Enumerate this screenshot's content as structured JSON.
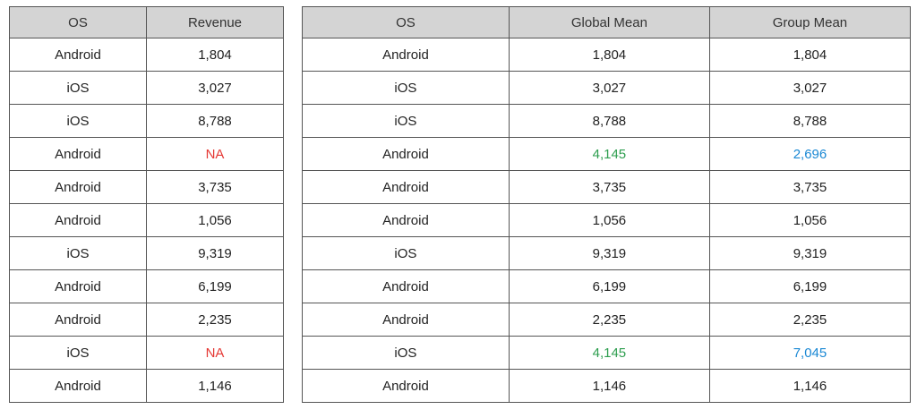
{
  "left_table": {
    "headers": [
      "OS",
      "Revenue"
    ],
    "rows": [
      [
        "Android",
        "1,804"
      ],
      [
        "iOS",
        "3,027"
      ],
      [
        "iOS",
        "8,788"
      ],
      [
        "Android",
        "NA"
      ],
      [
        "Android",
        "3,735"
      ],
      [
        "Android",
        "1,056"
      ],
      [
        "iOS",
        "9,319"
      ],
      [
        "Android",
        "6,199"
      ],
      [
        "Android",
        "2,235"
      ],
      [
        "iOS",
        "NA"
      ],
      [
        "Android",
        "1,146"
      ]
    ]
  },
  "right_table": {
    "headers": [
      "OS",
      "Global Mean",
      "Group Mean"
    ],
    "rows": [
      [
        "Android",
        "1,804",
        "1,804"
      ],
      [
        "iOS",
        "3,027",
        "3,027"
      ],
      [
        "iOS",
        "8,788",
        "8,788"
      ],
      [
        "Android",
        "4,145",
        "2,696"
      ],
      [
        "Android",
        "3,735",
        "3,735"
      ],
      [
        "Android",
        "1,056",
        "1,056"
      ],
      [
        "iOS",
        "9,319",
        "9,319"
      ],
      [
        "Android",
        "6,199",
        "6,199"
      ],
      [
        "Android",
        "2,235",
        "2,235"
      ],
      [
        "iOS",
        "4,145",
        "7,045"
      ],
      [
        "Android",
        "1,146",
        "1,146"
      ]
    ]
  },
  "colors": {
    "missing": "#e53935",
    "global_mean_imputed": "#2e9e4f",
    "group_mean_imputed": "#1a88d4",
    "header_bg": "#d4d4d4"
  }
}
